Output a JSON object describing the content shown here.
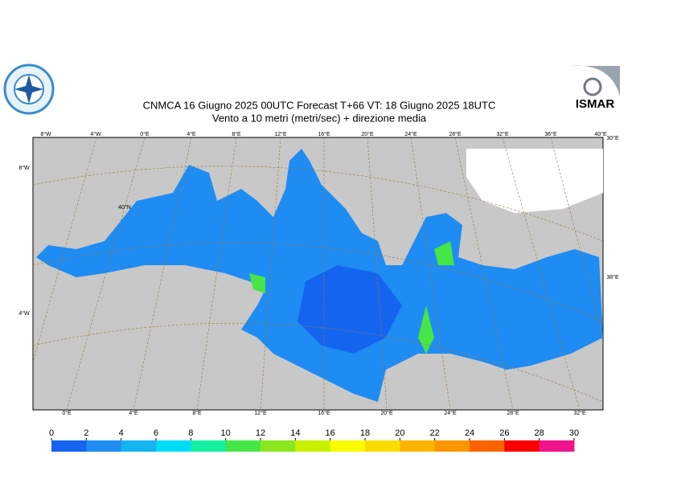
{
  "title": {
    "line1": "CNMCA 16   Giugno  2025 00UTC Forecast T+66 VT: 18   Giugno  2025 18UTC",
    "line2": "Vento a 10 metri (metri/sec) + direzione media"
  },
  "logo_right": "ISMAR",
  "map": {
    "lon_top": [
      "8°W",
      "4°W",
      "0°E",
      "4°E",
      "8°E",
      "12°E",
      "16°E",
      "20°E",
      "24°E",
      "28°E",
      "32°E",
      "36°E",
      "40°E"
    ],
    "lon_bottom": [
      "0°E",
      "4°E",
      "8°E",
      "12°E",
      "16°E",
      "20°E",
      "24°E",
      "28°E",
      "32°E"
    ],
    "lat_left": [
      "8°W",
      "40°N",
      "4°W"
    ],
    "lat_right": [
      "30°E",
      "38°E"
    ]
  },
  "colorbar": {
    "ticks": [
      0,
      2,
      4,
      6,
      8,
      10,
      12,
      14,
      16,
      18,
      20,
      22,
      24,
      26,
      28,
      30
    ],
    "colors": [
      "#1464f0",
      "#1e8cf2",
      "#16b4f0",
      "#00dcf5",
      "#14f0a0",
      "#46e646",
      "#8ce61e",
      "#c8f000",
      "#fafa00",
      "#fadc00",
      "#fab400",
      "#fa9600",
      "#fa6400",
      "#fa0000",
      "#f0148c"
    ]
  }
}
